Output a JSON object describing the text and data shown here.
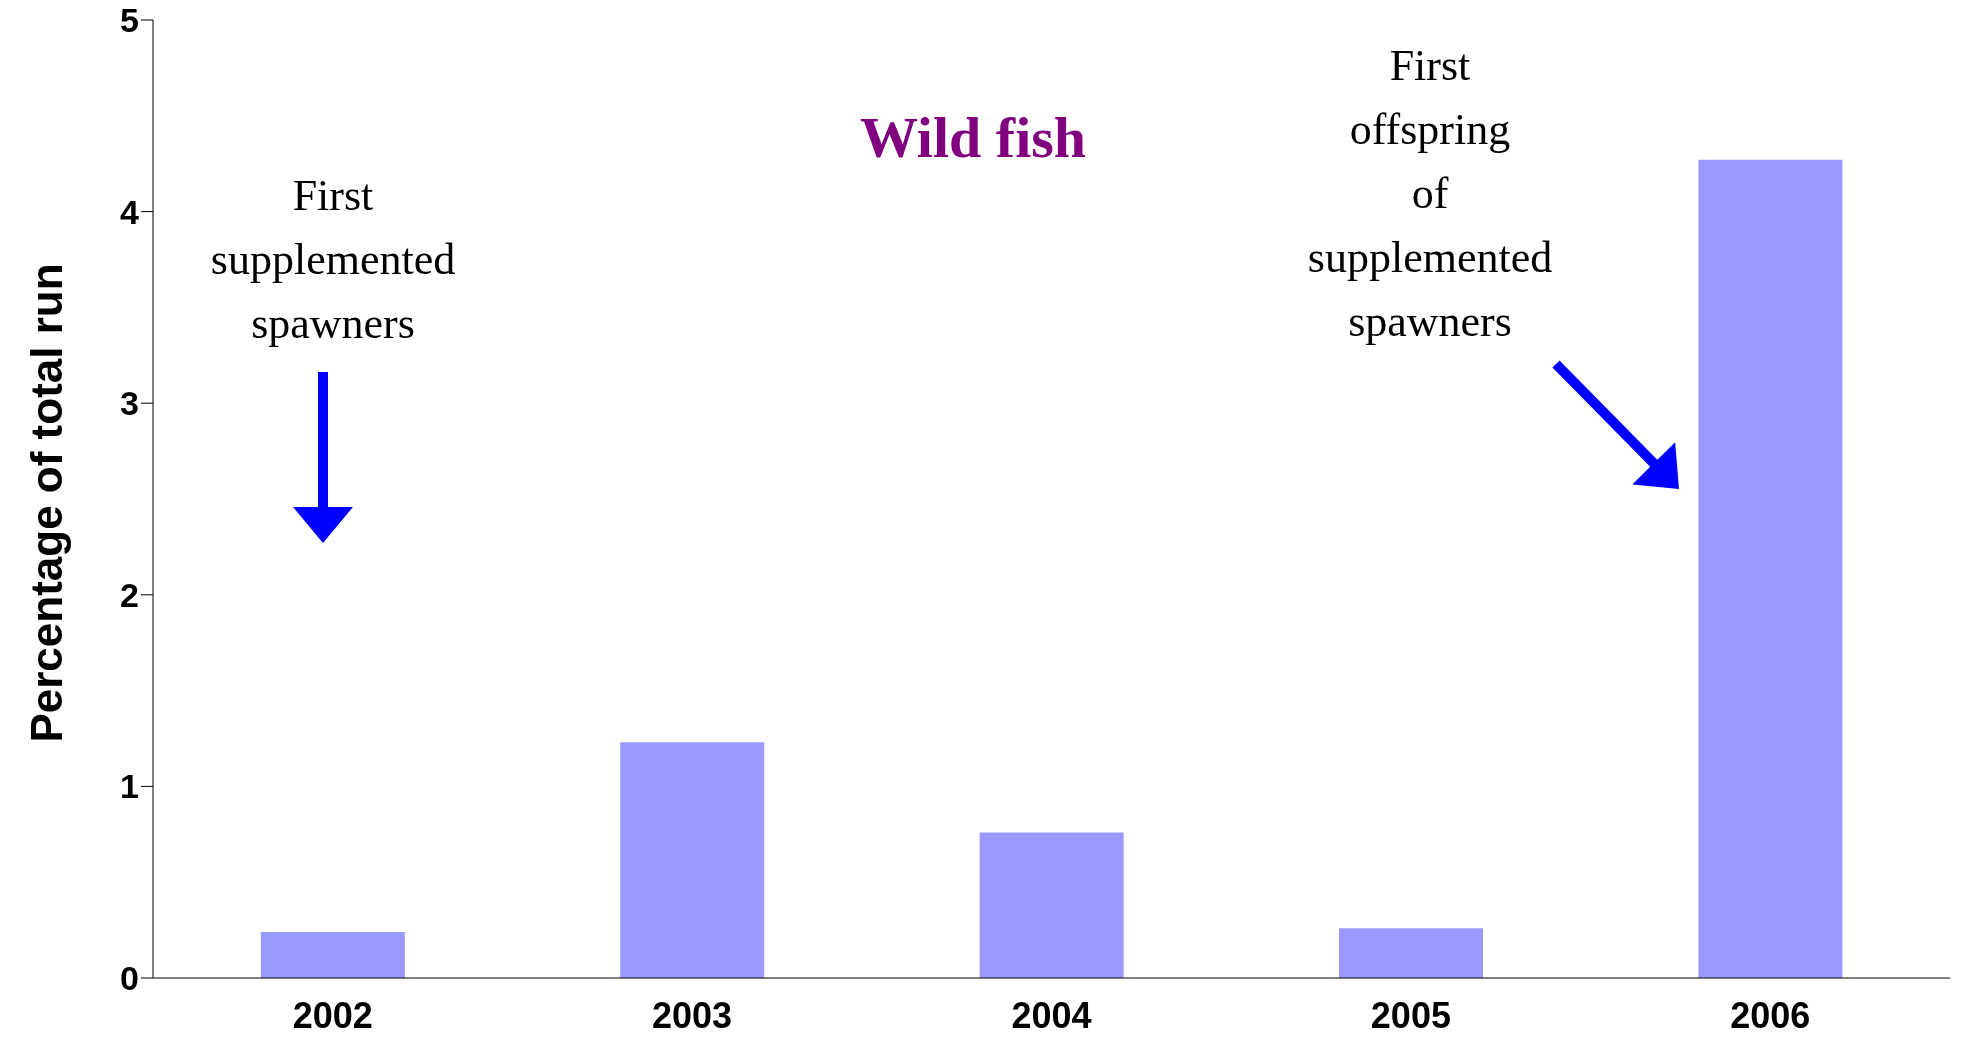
{
  "chart_data": {
    "type": "bar",
    "title": "Wild fish",
    "ylabel": "Percentage of total run",
    "categories": [
      "2002",
      "2003",
      "2004",
      "2005",
      "2006"
    ],
    "values": [
      0.24,
      1.23,
      0.76,
      0.26,
      4.27
    ],
    "color": "#9999ff",
    "ylim": [
      0,
      5
    ],
    "yticks": [
      0,
      1,
      2,
      3,
      4,
      5
    ],
    "grid": false,
    "legend": false,
    "annotations": [
      "First supplemented spawners",
      "First offspring of supplemented spawners"
    ]
  }
}
